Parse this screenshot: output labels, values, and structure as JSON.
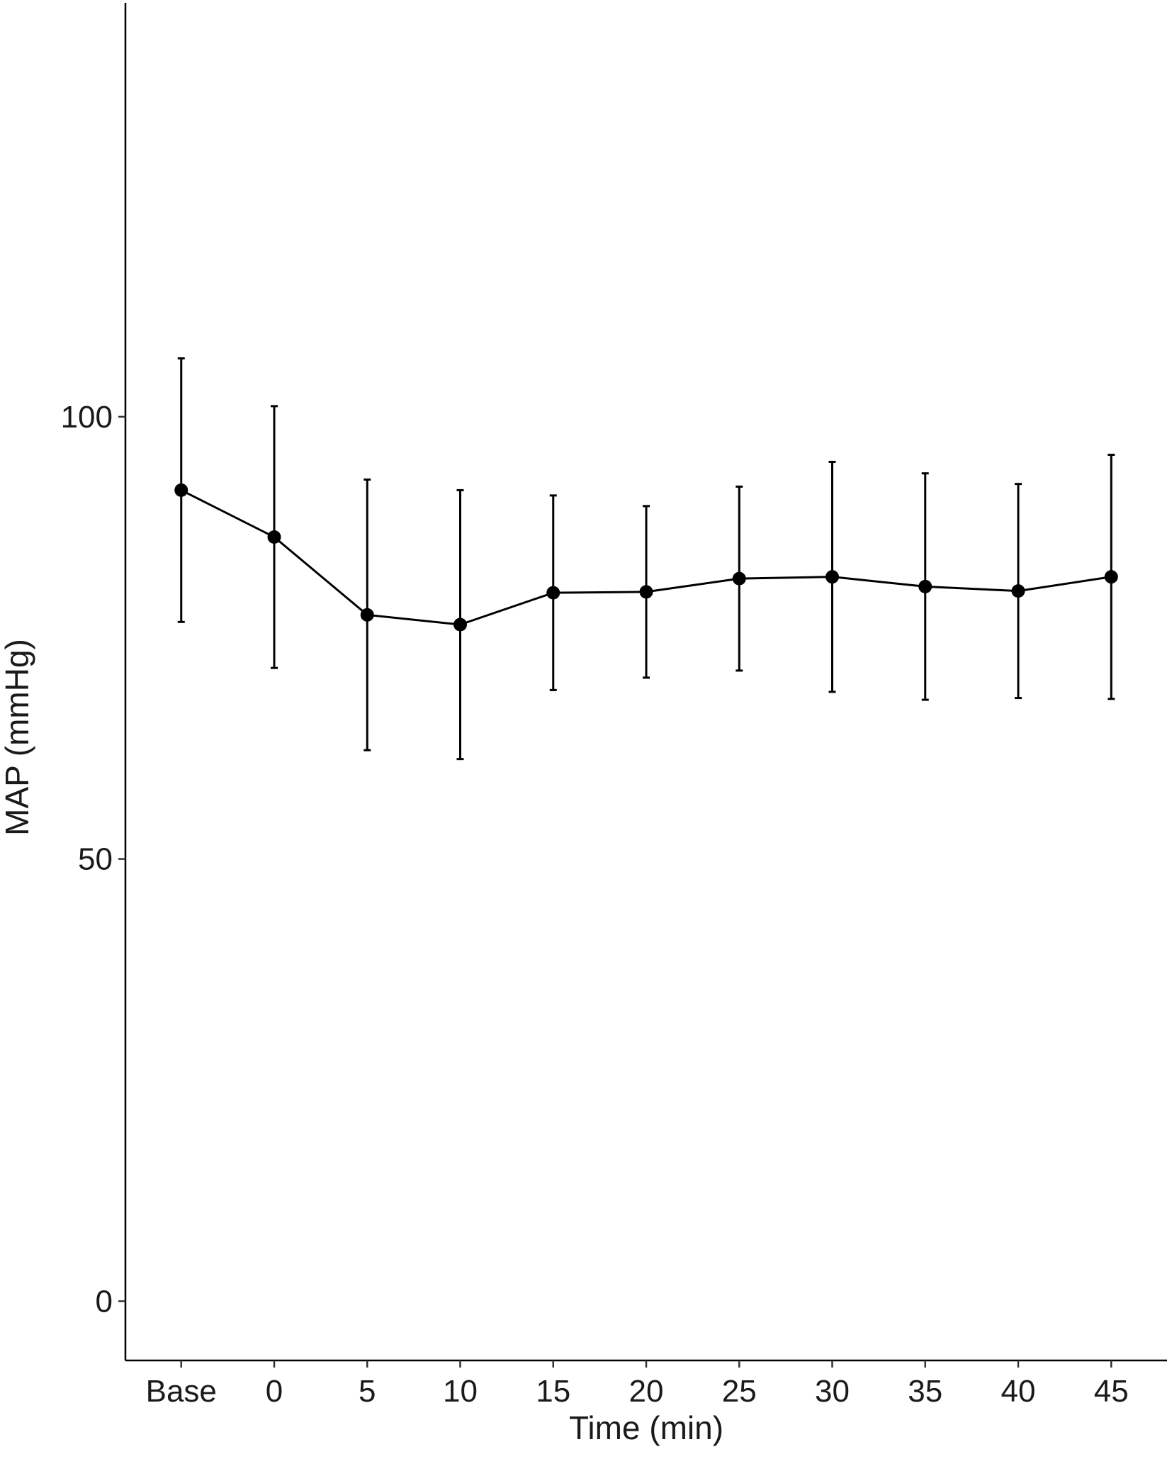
{
  "chart_data": {
    "type": "line",
    "x_label": "Time (min)",
    "y_label": "MAP (mmHg)",
    "categories": [
      "Base",
      "0",
      "5",
      "10",
      "15",
      "20",
      "25",
      "30",
      "35",
      "40",
      "45"
    ],
    "values": [
      91.7,
      86.4,
      77.6,
      76.5,
      80.1,
      80.2,
      81.7,
      81.9,
      80.8,
      80.3,
      81.9
    ],
    "errors": [
      14.9,
      14.8,
      15.3,
      15.2,
      11.0,
      9.7,
      10.4,
      13.0,
      12.8,
      12.1,
      13.8
    ],
    "color": "#000000",
    "ylim": [
      -6.7,
      146.8
    ],
    "yticks": [
      0,
      50,
      100
    ],
    "grid": false
  }
}
